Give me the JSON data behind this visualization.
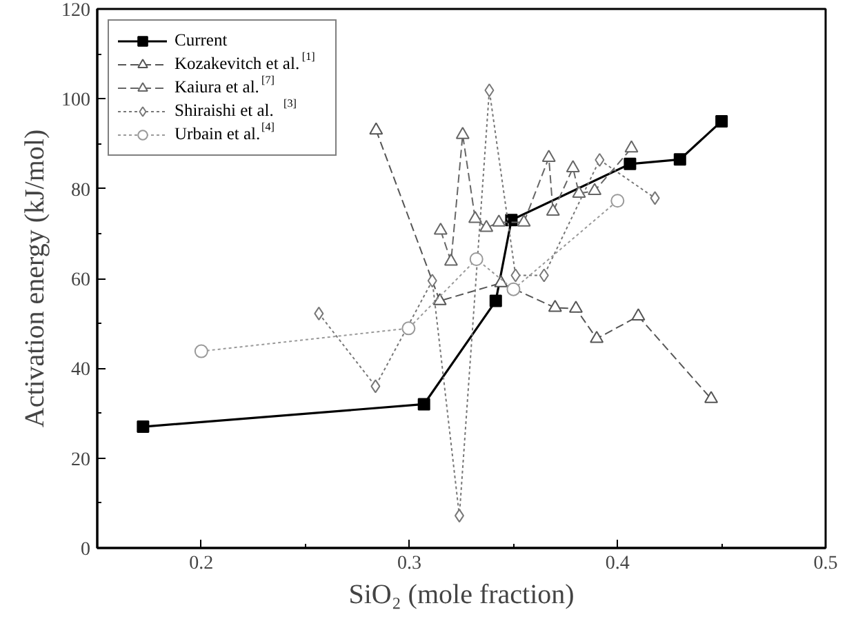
{
  "chart_data": {
    "type": "line",
    "xlabel": "SiO₂ (mole fraction)",
    "ylabel": "Activation energy (kJ/mol)",
    "xlim": [
      0.15,
      0.5
    ],
    "xticks": [
      0.2,
      0.3,
      0.4,
      0.5
    ],
    "ylim": [
      0,
      120
    ],
    "yticks": [
      0,
      20,
      40,
      60,
      80,
      100,
      120
    ],
    "grid": false,
    "legend": "top left",
    "series": [
      {
        "name": "Current",
        "color": "#000000",
        "marker": "square",
        "line_style": "solid",
        "x": [
          0.172,
          0.307,
          0.3415,
          0.349,
          0.406,
          0.43,
          0.45
        ],
        "values": [
          27,
          32,
          55,
          73,
          85.5,
          86.5,
          95
        ]
      },
      {
        "name": "Kozakevitch et al.$^{[1]}$",
        "color": "#555555",
        "marker": "triangle",
        "line_style": "dashed",
        "x": [
          0.284,
          0.3146,
          0.344,
          0.37,
          0.38,
          0.39,
          0.41,
          0.445
        ],
        "values": [
          93,
          55,
          59,
          53.5,
          53.3,
          46.6,
          51.6,
          33.2
        ]
      },
      {
        "name": "Kaiura et al.$^{[7]}$",
        "color": "#666666",
        "marker": "triangle",
        "line_style": "dashed",
        "x": [
          0.315,
          0.32,
          0.3256,
          0.3316,
          0.337,
          0.343,
          0.355,
          0.367,
          0.369,
          0.3786,
          0.3815,
          0.389,
          0.4067
        ],
        "values": [
          70.7,
          63.8,
          92,
          73.3,
          71.3,
          72.5,
          72.5,
          86.9,
          74.9,
          84.6,
          78.9,
          79.5,
          89
        ]
      },
      {
        "name": "Shiraishi et al. $^{[3]}$",
        "color": "#777777",
        "marker": "diamond",
        "line_style": "dotted",
        "x": [
          0.2565,
          0.2837,
          0.311,
          0.324,
          0.3384,
          0.351,
          0.3647,
          0.3914,
          0.418
        ],
        "values": [
          52.2,
          36,
          59.5,
          7.2,
          101.9,
          60.7,
          60.7,
          86.4,
          77.9
        ]
      },
      {
        "name": "Urbain et al.$^{[4]}$",
        "color": "#999999",
        "marker": "circle",
        "line_style": "dotted",
        "x": [
          0.2,
          0.2996,
          0.3322,
          0.35,
          0.4
        ],
        "values": [
          43.8,
          48.9,
          64.3,
          57.6,
          77.3
        ]
      }
    ]
  }
}
